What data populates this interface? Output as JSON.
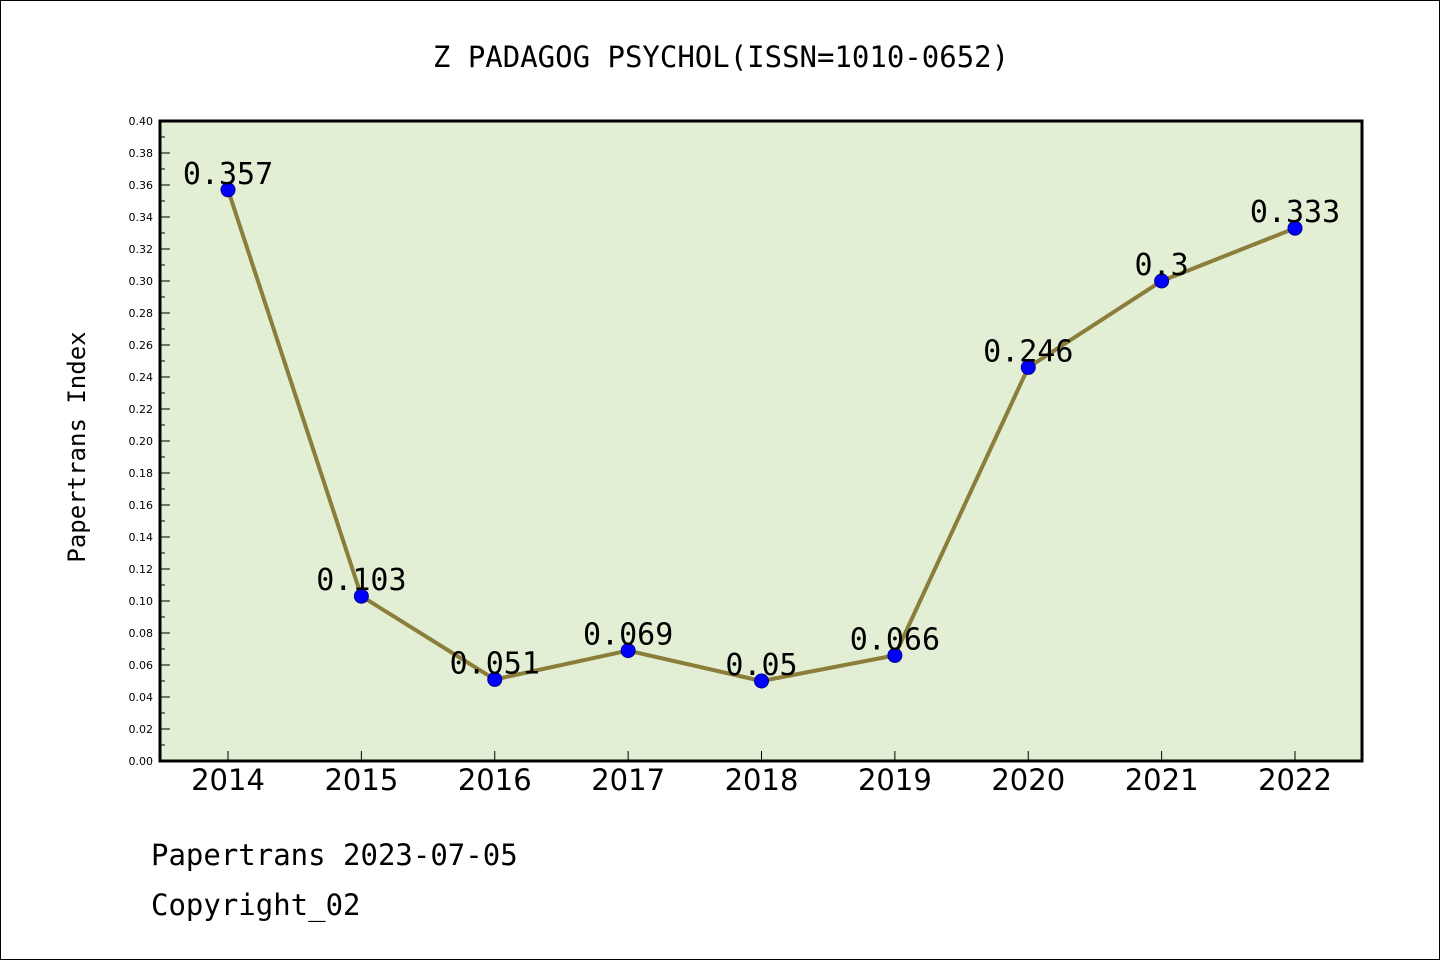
{
  "chart_data": {
    "type": "line",
    "title": "Z PADAGOG PSYCHOL(ISSN=1010-0652)",
    "ylabel": "Papertrans Index",
    "xlabel": "",
    "categories": [
      "2014",
      "2015",
      "2016",
      "2017",
      "2018",
      "2019",
      "2020",
      "2021",
      "2022"
    ],
    "values": [
      0.357,
      0.103,
      0.051,
      0.069,
      0.05,
      0.066,
      0.246,
      0.3,
      0.333
    ],
    "data_labels": [
      "0.357",
      "0.103",
      "0.051",
      "0.069",
      "0.05",
      "0.066",
      "0.246",
      "0.3",
      "0.333"
    ],
    "ylim": [
      0,
      0.4
    ],
    "yticks": [
      "0.00",
      "0.02",
      "0.04",
      "0.06",
      "0.08",
      "0.10",
      "0.12",
      "0.14",
      "0.16",
      "0.18",
      "0.20",
      "0.22",
      "0.24",
      "0.26",
      "0.28",
      "0.30",
      "0.32",
      "0.34",
      "0.36",
      "0.38",
      "0.40"
    ],
    "grid": false,
    "legend": "none",
    "colors": {
      "plot_background": "#e2efd5",
      "line": "#8b7d3a",
      "marker": "#0000ff"
    }
  },
  "footer": {
    "line1": "Papertrans 2023-07-05",
    "line2": "Copyright_02"
  }
}
